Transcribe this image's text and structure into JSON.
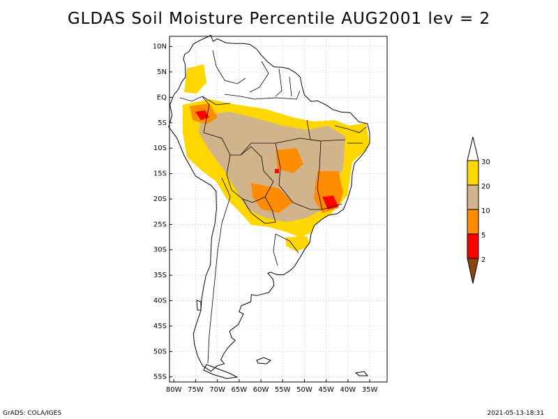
{
  "title": "GLDAS Soil Moisture Percentile AUG2001 lev = 2",
  "footer": {
    "left": "GrADS: COLA/IGES",
    "right": "2021-05-13-18:31"
  },
  "axes": {
    "lat_labels": [
      "10N",
      "5N",
      "EQ",
      "5S",
      "10S",
      "15S",
      "20S",
      "25S",
      "30S",
      "35S",
      "40S",
      "45S",
      "50S",
      "55S"
    ],
    "lat_values": [
      10,
      5,
      0,
      -5,
      -10,
      -15,
      -20,
      -25,
      -30,
      -35,
      -40,
      -45,
      -50,
      -55
    ],
    "lon_labels": [
      "80W",
      "75W",
      "70W",
      "65W",
      "60W",
      "55W",
      "50W",
      "45W",
      "40W",
      "35W"
    ],
    "lon_values": [
      -80,
      -75,
      -70,
      -65,
      -60,
      -55,
      -50,
      -45,
      -40,
      -35
    ],
    "lon_range": [
      -81,
      -31
    ],
    "lat_range": [
      -56,
      12
    ],
    "grid": true
  },
  "colorbar": {
    "labels": [
      "30",
      "20",
      "10",
      "5",
      "2"
    ],
    "colors": {
      "above_30": "#ffffff",
      "20_30": "#ffd700",
      "10_20": "#d2b48c",
      "5_10": "#ff8c00",
      "2_5": "#ff0000",
      "below_2": "#8b4513"
    }
  },
  "colors": {
    "gold": "#ffd700",
    "tan": "#d2b48c",
    "orange": "#ff8c00",
    "red": "#ff0000",
    "border": "#000000",
    "grid": "#b0b0b0"
  }
}
